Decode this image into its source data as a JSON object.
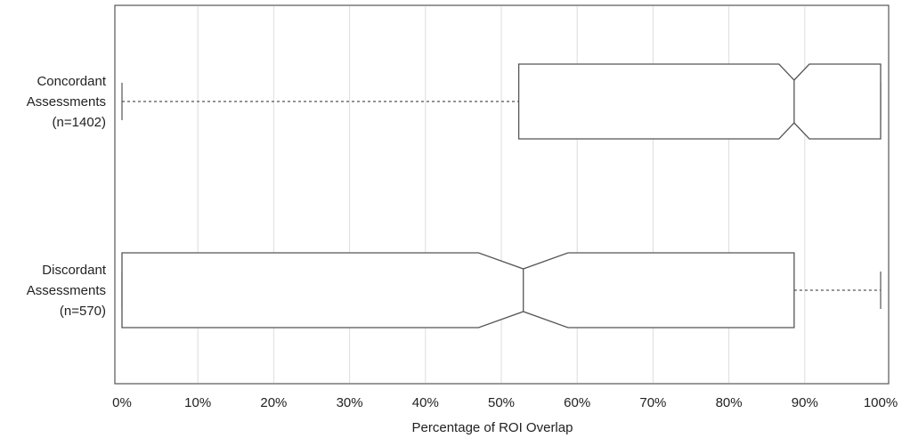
{
  "chart_data": {
    "type": "notched-boxplot",
    "orientation": "horizontal",
    "title": "",
    "xlabel": "Percentage of ROI Overlap",
    "ylabel": "",
    "xlim": [
      0,
      100
    ],
    "x_ticks": [
      0,
      10,
      20,
      30,
      40,
      50,
      60,
      70,
      80,
      90,
      100
    ],
    "x_tick_labels": [
      "0%",
      "10%",
      "20%",
      "30%",
      "40%",
      "50%",
      "60%",
      "70%",
      "80%",
      "90%",
      "100%"
    ],
    "grid": {
      "vertical": true,
      "horizontal": false
    },
    "series": [
      {
        "label_lines": [
          "Concordant",
          "Assessments",
          "(n=1402)"
        ],
        "whisker_low": 0,
        "q1": 52.3,
        "notch_low": 86.6,
        "median": 88.6,
        "notch_high": 90.6,
        "q3": 100,
        "whisker_high": 100
      },
      {
        "label_lines": [
          "Discordant",
          "Assessments",
          "(n=570)"
        ],
        "whisker_low": 0,
        "q1": 0,
        "notch_low": 47.0,
        "median": 52.9,
        "notch_high": 58.8,
        "q3": 88.6,
        "whisker_high": 100
      }
    ],
    "colors": {
      "box": "#555555",
      "grid": "#dddddd",
      "frame": "#555555",
      "whisker": "#555555"
    }
  }
}
